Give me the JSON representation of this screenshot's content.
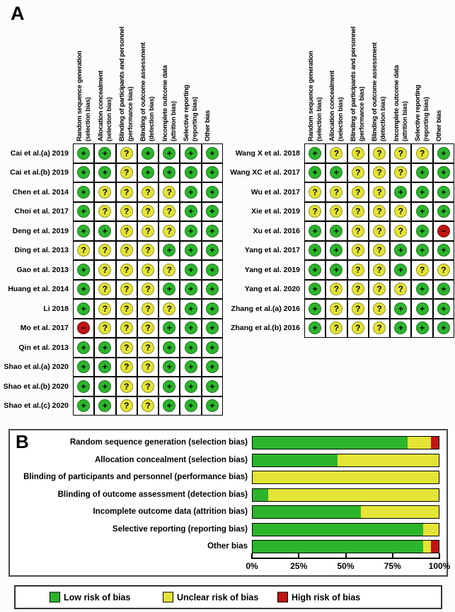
{
  "figure": {
    "panel_a_label": "A",
    "panel_b_label": "B"
  },
  "risk_levels": {
    "low": {
      "label": "Low risk of bias",
      "color": "#2CB52C",
      "symbol": "+"
    },
    "unclear": {
      "label": "Unclear risk of bias",
      "color": "#E4E436",
      "symbol": "?"
    },
    "high": {
      "label": "High risk of bias",
      "color": "#C01414",
      "symbol": "−"
    }
  },
  "chart_data": [
    {
      "type": "table",
      "panel": "A",
      "columns": [
        {
          "name": "Random sequence generation",
          "sub": "(selection bias)"
        },
        {
          "name": "Allocation concealment",
          "sub": "(selection bias)"
        },
        {
          "name": "Blinding of participants and personnel",
          "sub": "(performance bias)"
        },
        {
          "name": "Blinding of outcome assessment",
          "sub": "(detection bias)"
        },
        {
          "name": "Incomplete outcome data",
          "sub": "(attrition bias)"
        },
        {
          "name": "Selective reporting",
          "sub": "(reporting bias)"
        },
        {
          "name": "Other bias",
          "sub": ""
        }
      ],
      "left_rows": [
        {
          "study": "Cai et al.(a) 2019",
          "ratings": [
            "+",
            "+",
            "?",
            "+",
            "+",
            "+",
            "+"
          ]
        },
        {
          "study": "Cai et al.(b) 2019",
          "ratings": [
            "+",
            "+",
            "?",
            "+",
            "+",
            "+",
            "+"
          ]
        },
        {
          "study": "Chen et al. 2014",
          "ratings": [
            "+",
            "?",
            "?",
            "?",
            "?",
            "+",
            "+"
          ]
        },
        {
          "study": "Choi et al. 2017",
          "ratings": [
            "+",
            "?",
            "?",
            "?",
            "?",
            "+",
            "+"
          ]
        },
        {
          "study": "Deng et al. 2019",
          "ratings": [
            "+",
            "+",
            "?",
            "?",
            "?",
            "+",
            "+"
          ]
        },
        {
          "study": "Ding et al. 2013",
          "ratings": [
            "?",
            "?",
            "?",
            "?",
            "+",
            "+",
            "+"
          ]
        },
        {
          "study": "Gao et al. 2013",
          "ratings": [
            "+",
            "?",
            "?",
            "?",
            "?",
            "+",
            "+"
          ]
        },
        {
          "study": "Huang et al. 2014",
          "ratings": [
            "+",
            "?",
            "?",
            "?",
            "+",
            "+",
            "+"
          ]
        },
        {
          "study": "Li 2018",
          "ratings": [
            "+",
            "?",
            "?",
            "?",
            "?",
            "+",
            "+"
          ]
        },
        {
          "study": "Mo et al. 2017",
          "ratings": [
            "-",
            "?",
            "?",
            "?",
            "+",
            "+",
            "+"
          ]
        },
        {
          "study": "Qin et al. 2013",
          "ratings": [
            "+",
            "+",
            "?",
            "?",
            "+",
            "+",
            "+"
          ]
        },
        {
          "study": "Shao et al.(a) 2020",
          "ratings": [
            "+",
            "+",
            "?",
            "?",
            "+",
            "+",
            "+"
          ]
        },
        {
          "study": "Shao et al.(b) 2020",
          "ratings": [
            "+",
            "+",
            "?",
            "?",
            "+",
            "+",
            "+"
          ]
        },
        {
          "study": "Shao et al.(c) 2020",
          "ratings": [
            "+",
            "+",
            "?",
            "?",
            "+",
            "+",
            "+"
          ]
        }
      ],
      "right_rows": [
        {
          "study": "Wang X et al. 2018",
          "ratings": [
            "+",
            "?",
            "?",
            "?",
            "?",
            "?",
            "+"
          ]
        },
        {
          "study": "Wang XC et al. 2017",
          "ratings": [
            "+",
            "+",
            "?",
            "?",
            "?",
            "+",
            "+"
          ]
        },
        {
          "study": "Wu et al. 2017",
          "ratings": [
            "?",
            "?",
            "?",
            "?",
            "+",
            "+",
            "+"
          ]
        },
        {
          "study": "Xie et al. 2019",
          "ratings": [
            "?",
            "?",
            "?",
            "?",
            "?",
            "+",
            "+"
          ]
        },
        {
          "study": "Xu et al. 2016",
          "ratings": [
            "+",
            "+",
            "?",
            "?",
            "?",
            "+",
            "-"
          ]
        },
        {
          "study": "Yang et al. 2017",
          "ratings": [
            "+",
            "+",
            "?",
            "?",
            "+",
            "+",
            "+"
          ]
        },
        {
          "study": "Yang et al. 2019",
          "ratings": [
            "+",
            "+",
            "?",
            "?",
            "+",
            "?",
            "?"
          ]
        },
        {
          "study": "Yang et al. 2020",
          "ratings": [
            "+",
            "?",
            "?",
            "?",
            "?",
            "+",
            "+"
          ]
        },
        {
          "study": "Zhang et al.(a) 2016",
          "ratings": [
            "+",
            "?",
            "?",
            "?",
            "+",
            "+",
            "+"
          ]
        },
        {
          "study": "Zhang et al.(b) 2016",
          "ratings": [
            "+",
            "?",
            "?",
            "?",
            "+",
            "+",
            "+"
          ]
        }
      ]
    },
    {
      "type": "bar",
      "stacked": true,
      "panel": "B",
      "categories": [
        "Random sequence generation (selection bias)",
        "Allocation concealment (selection bias)",
        "Blinding of participants and personnel (performance bias)",
        "Blinding of outcome assessment (detection bias)",
        "Incomplete outcome data (attrition bias)",
        "Selective reporting (reporting bias)",
        "Other bias"
      ],
      "series": [
        {
          "name": "Low risk of bias",
          "values": [
            83.3,
            45.8,
            0,
            8.3,
            58.3,
            91.7,
            91.7
          ]
        },
        {
          "name": "Unclear risk of bias",
          "values": [
            12.5,
            54.2,
            100,
            91.7,
            41.7,
            8.3,
            4.2
          ]
        },
        {
          "name": "High risk of bias",
          "values": [
            4.2,
            0,
            0,
            0,
            0,
            0,
            4.2
          ]
        }
      ],
      "xlim": [
        0,
        100
      ],
      "x_ticks": [
        "0%",
        "25%",
        "50%",
        "75%",
        "100%"
      ],
      "grid": false,
      "legend_position": "bottom"
    }
  ]
}
